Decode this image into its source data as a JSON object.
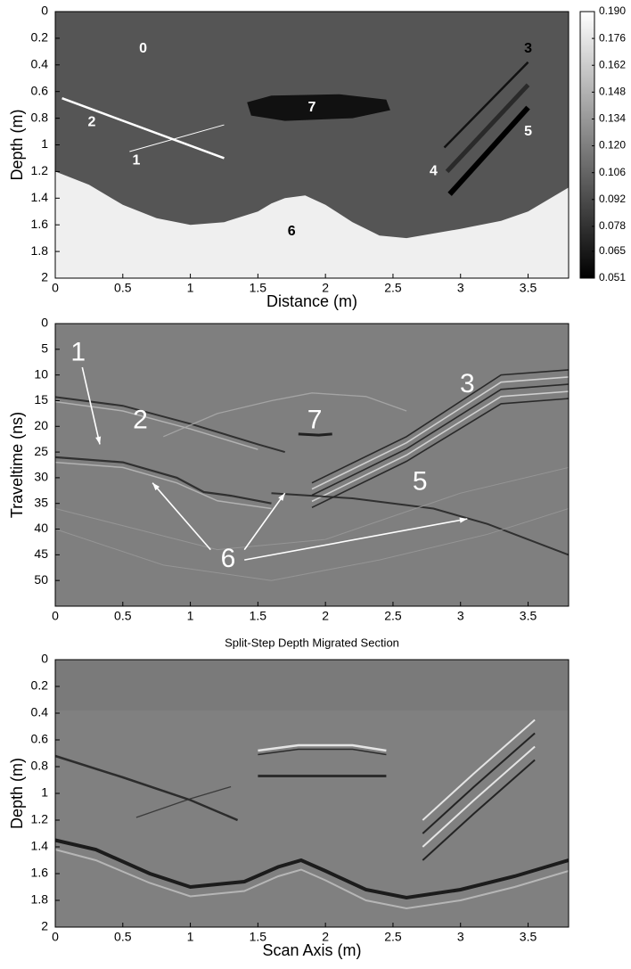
{
  "chart_data": [
    {
      "type": "image",
      "xlabel": "Distance (m)",
      "ylabel": "Depth (m)",
      "xlim": [
        0,
        3.8
      ],
      "ylim": [
        0,
        2
      ],
      "xticks": [
        0,
        0.5,
        1,
        1.5,
        2,
        2.5,
        3,
        3.5
      ],
      "yticks": [
        0,
        0.2,
        0.4,
        0.6,
        0.8,
        1,
        1.2,
        1.4,
        1.6,
        1.8,
        2
      ],
      "annotations": [
        "0",
        "2",
        "1",
        "7",
        "3",
        "4",
        "5",
        "6"
      ],
      "clim": [
        0.051,
        0.19
      ],
      "cticks": [
        0.051,
        0.065,
        0.078,
        0.092,
        0.106,
        {
          "value": 0.12,
          "label": "0.120"
        },
        0.134,
        0.148,
        0.162,
        0.176,
        {
          "value": 0.19,
          "label": "0.190"
        }
      ]
    },
    {
      "type": "image",
      "ylabel": "Traveltime (ns)",
      "xlim": [
        0,
        3.8
      ],
      "ylim": [
        0,
        55
      ],
      "xticks": [
        0,
        0.5,
        1,
        1.5,
        2,
        2.5,
        3,
        3.5
      ],
      "yticks": [
        0,
        5,
        10,
        15,
        20,
        25,
        30,
        35,
        40,
        45,
        50
      ],
      "annotations": [
        "1",
        "2",
        "7",
        "3",
        "5",
        "6"
      ]
    },
    {
      "type": "image",
      "title": "Split-Step Depth Migrated Section",
      "xlabel": "Scan Axis (m)",
      "ylabel": "Depth (m)",
      "xlim": [
        0,
        3.8
      ],
      "ylim": [
        0,
        2
      ],
      "xticks": [
        0,
        0.5,
        1,
        1.5,
        2,
        2.5,
        3,
        3.5
      ],
      "yticks": [
        0,
        0.2,
        0.4,
        0.6,
        0.8,
        1,
        1.2,
        1.4,
        1.6,
        1.8,
        2
      ]
    }
  ]
}
